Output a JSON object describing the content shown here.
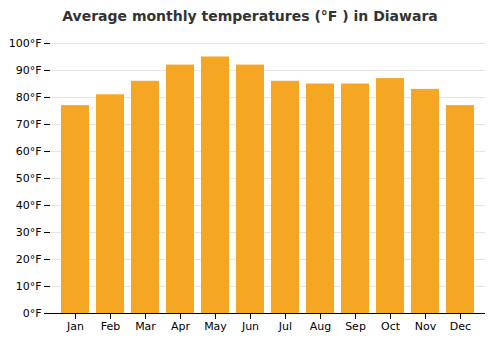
{
  "chart_data": {
    "type": "bar",
    "title": "Average monthly temperatures (°F ) in Diawara",
    "categories": [
      "Jan",
      "Feb",
      "Mar",
      "Apr",
      "May",
      "Jun",
      "Jul",
      "Aug",
      "Sep",
      "Oct",
      "Nov",
      "Dec"
    ],
    "values": [
      77,
      81,
      86,
      92,
      95,
      92,
      86,
      85,
      85,
      87,
      83,
      77
    ],
    "color": "#F5A623",
    "ylim": [
      0,
      100
    ],
    "yticks": [
      {
        "value": 0,
        "label": "0°F"
      },
      {
        "value": 10,
        "label": "10°F"
      },
      {
        "value": 20,
        "label": "20°F"
      },
      {
        "value": 30,
        "label": "30°F"
      },
      {
        "value": 40,
        "label": "40°F"
      },
      {
        "value": 50,
        "label": "50°F"
      },
      {
        "value": 60,
        "label": "60°F"
      },
      {
        "value": 70,
        "label": "70°F"
      },
      {
        "value": 80,
        "label": "80°F"
      },
      {
        "value": 90,
        "label": "90°F"
      },
      {
        "value": 100,
        "label": "100°F"
      }
    ],
    "grid": true
  }
}
